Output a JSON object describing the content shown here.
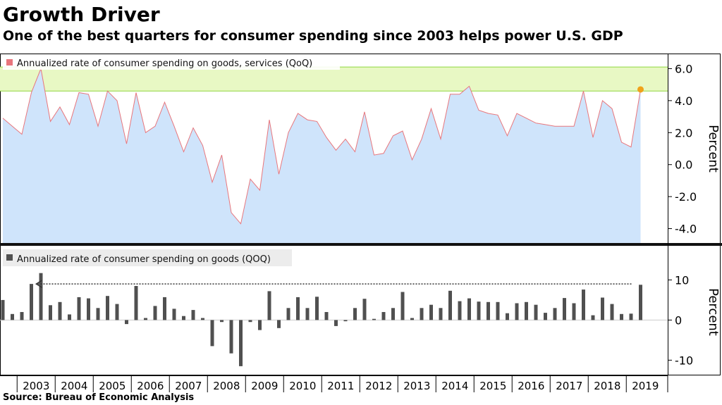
{
  "header": {
    "title": "Growth Driver",
    "subtitle": "One of the best quarters for consumer spending since 2003 helps power U.S. GDP"
  },
  "footer": {
    "source": "Source: Bureau of Economic Analysis"
  },
  "colors": {
    "top_line": "#e8767c",
    "top_fill": "#cfe4fb",
    "band_fill": "#e8f8c4",
    "band_line": "#8fd63f",
    "highlight_dot": "#f0a21a",
    "bars": "#505050",
    "arrow": "#333333"
  },
  "chart_data": [
    {
      "type": "area",
      "legend": "Annualized rate of consumer spending on goods, services (QoQ)",
      "ylabel": "Percent",
      "ylim": [
        -4.9,
        6.9
      ],
      "yticks": [
        6,
        4,
        2,
        0,
        -2,
        -4
      ],
      "ytick_labels": [
        "6.0",
        "4.0",
        "2.0",
        "0.0",
        "-2.0",
        "-4.0"
      ],
      "highlight_band": [
        4.6,
        6.1
      ],
      "highlight_last_point": true,
      "x_start": "2002 Q3",
      "values": [
        2.9,
        2.4,
        1.9,
        4.5,
        6.0,
        2.7,
        3.6,
        2.5,
        4.5,
        4.4,
        2.4,
        4.6,
        4.0,
        1.3,
        4.5,
        2.0,
        2.4,
        3.9,
        2.4,
        0.8,
        2.3,
        1.2,
        -1.1,
        0.6,
        -3.0,
        -3.7,
        -0.9,
        -1.6,
        2.8,
        -0.6,
        2.0,
        3.2,
        2.8,
        2.7,
        1.7,
        0.9,
        1.6,
        0.8,
        3.3,
        0.6,
        0.7,
        1.8,
        2.1,
        0.3,
        1.6,
        3.5,
        1.6,
        4.4,
        4.4,
        4.9,
        3.4,
        3.2,
        3.1,
        1.8,
        3.2,
        2.9,
        2.6,
        2.5,
        2.4,
        2.4,
        2.4,
        4.6,
        1.7,
        4.0,
        3.5,
        1.4,
        1.1,
        4.7
      ]
    },
    {
      "type": "bar",
      "legend": "Annualized rate of consumer spending on goods (QOQ)",
      "ylabel": "Percent",
      "ylim": [
        -13.8,
        18.5
      ],
      "yticks": [
        10,
        0,
        -10
      ],
      "ytick_labels": [
        "10",
        "0",
        "-10"
      ],
      "arrow_level": 9.0,
      "arrow_from_quarter": "2003 Q2",
      "x_start": "2002 Q3",
      "values": [
        5.0,
        1.5,
        2.0,
        9.0,
        11.7,
        3.7,
        4.5,
        1.4,
        5.7,
        5.4,
        3.0,
        6.0,
        4.0,
        -1.0,
        8.5,
        0.5,
        3.5,
        5.7,
        2.8,
        1.0,
        2.5,
        0.5,
        -6.5,
        -0.5,
        -8.3,
        -11.5,
        -0.5,
        -2.5,
        7.2,
        -2.0,
        3.0,
        5.7,
        3.0,
        5.8,
        2.0,
        -1.5,
        -0.3,
        3.0,
        5.3,
        0.3,
        2.0,
        3.0,
        7.0,
        0.5,
        3.0,
        3.8,
        3.0,
        7.3,
        4.7,
        5.4,
        4.6,
        4.5,
        4.5,
        1.7,
        4.2,
        4.5,
        3.8,
        1.8,
        3.0,
        5.5,
        4.2,
        7.6,
        1.2,
        5.6,
        4.0,
        1.5,
        1.6,
        8.8
      ]
    }
  ],
  "x_axis": {
    "years": [
      "2003",
      "2004",
      "2005",
      "2006",
      "2007",
      "2008",
      "2009",
      "2010",
      "2011",
      "2012",
      "2013",
      "2014",
      "2015",
      "2016",
      "2017",
      "2018",
      "2019"
    ]
  }
}
